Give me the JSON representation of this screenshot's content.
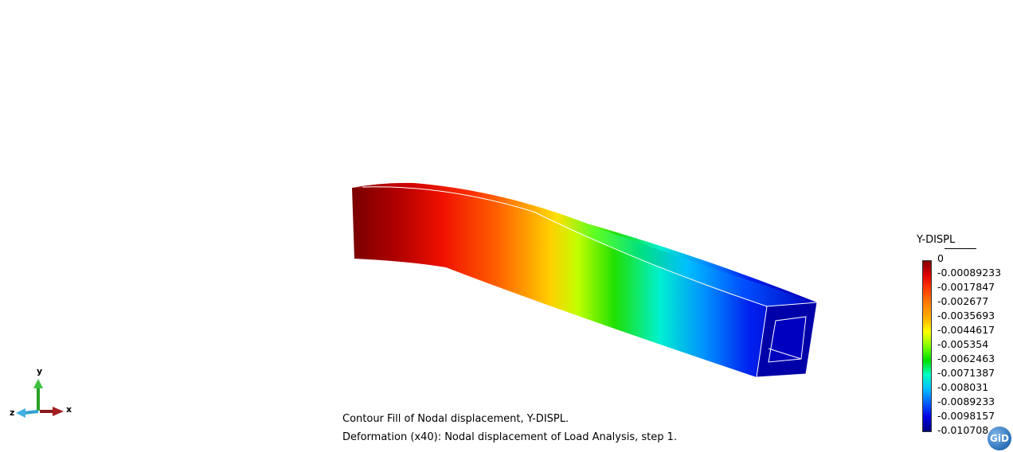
{
  "view": {
    "caption_line1": "Contour Fill of Nodal displacement, Y-DISPL.",
    "caption_line2": "Deformation (x40): Nodal displacement of Load Analysis, step 1."
  },
  "legend": {
    "title": "Y-DISPL",
    "labels": [
      "0",
      "-0.00089233",
      "-0.0017847",
      "-0.002677",
      "-0.0035693",
      "-0.0044617",
      "-0.005354",
      "-0.0062463",
      "-0.0071387",
      "-0.008031",
      "-0.0089233",
      "-0.0098157",
      "-0.010708"
    ],
    "colors": [
      "#800000",
      "#e00000",
      "#ff4000",
      "#ff8000",
      "#ffb000",
      "#ffff00",
      "#80ff00",
      "#00e000",
      "#00ffc0",
      "#00c0ff",
      "#0060ff",
      "#0000e0",
      "#000080"
    ]
  },
  "axes": {
    "x": "x",
    "y": "y",
    "z": "z"
  },
  "logo": {
    "text": "GiD"
  }
}
